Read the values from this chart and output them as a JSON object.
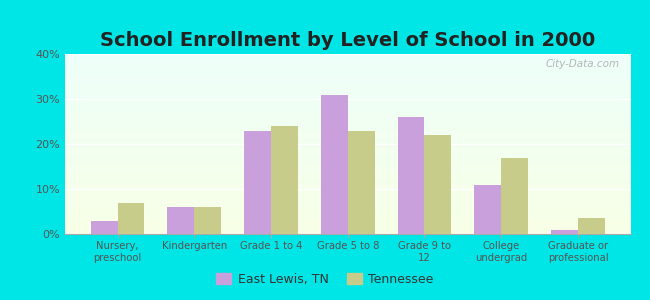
{
  "title": "School Enrollment by Level of School in 2000",
  "categories": [
    "Nursery,\npreschool",
    "Kindergarten",
    "Grade 1 to 4",
    "Grade 5 to 8",
    "Grade 9 to\n12",
    "College\nundergrad",
    "Graduate or\nprofessional"
  ],
  "east_lewis": [
    3.0,
    6.0,
    23.0,
    31.0,
    26.0,
    11.0,
    1.0
  ],
  "tennessee": [
    7.0,
    6.0,
    24.0,
    23.0,
    22.0,
    17.0,
    3.5
  ],
  "east_lewis_color": "#c9a0dc",
  "tennessee_color": "#c8cc8a",
  "background_color": "#00e5e5",
  "ylim": [
    0,
    40
  ],
  "yticks": [
    0,
    10,
    20,
    30,
    40
  ],
  "bar_width": 0.35,
  "title_fontsize": 14,
  "legend_labels": [
    "East Lewis, TN",
    "Tennessee"
  ],
  "watermark": "City-Data.com"
}
